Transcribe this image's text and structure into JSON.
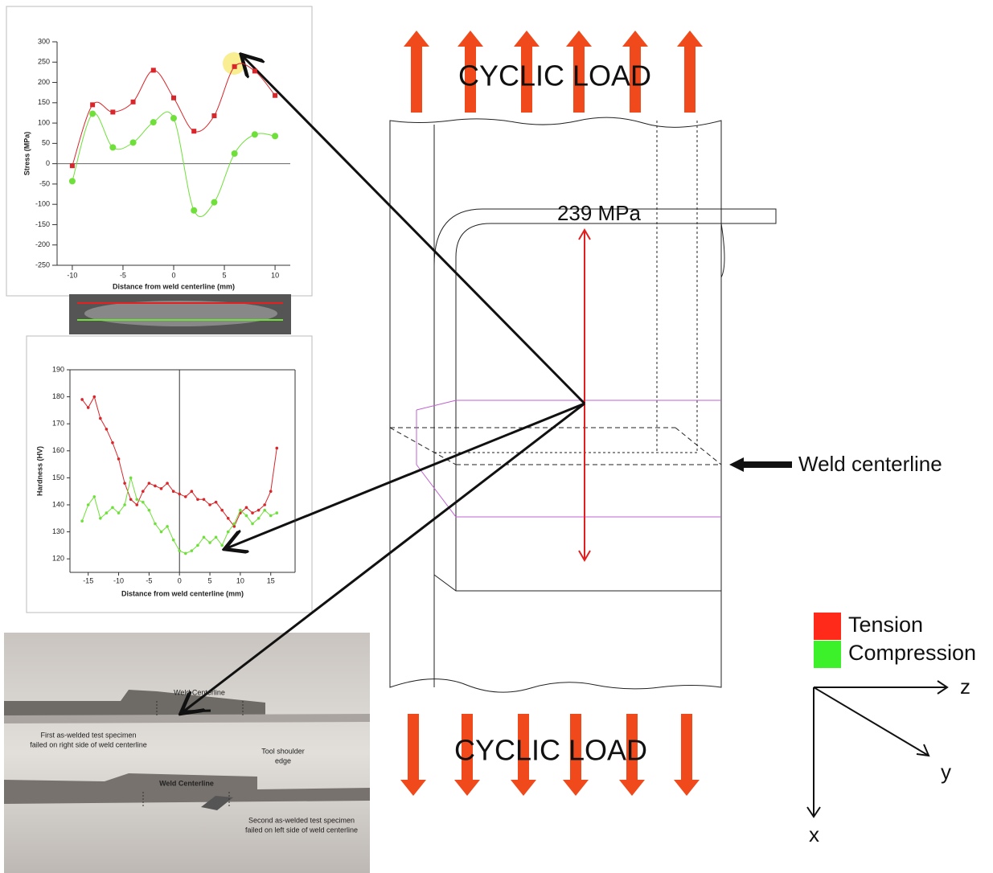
{
  "chart_data": [
    {
      "type": "line",
      "smooth": true,
      "xlabel": "Distance from weld centerline (mm)",
      "ylabel": "Stress (MPa)",
      "x": [
        -10,
        -8,
        -6,
        -4,
        -2,
        0,
        2,
        4,
        6,
        8,
        10
      ],
      "series": [
        {
          "color": "#d8262a",
          "values": [
            -5,
            145,
            127,
            152,
            230,
            162,
            80,
            118,
            239,
            228,
            168
          ]
        },
        {
          "color": "#6fe03a",
          "values": [
            -43,
            123,
            40,
            52,
            102,
            112,
            -115,
            -95,
            25,
            72,
            68
          ]
        }
      ],
      "xlim": [
        -11.5,
        11.5
      ],
      "xticks": [
        -10,
        -5,
        0,
        5,
        10
      ],
      "ylim": [
        -250,
        300
      ],
      "yticks": [
        -250,
        -200,
        -150,
        -100,
        -50,
        0,
        50,
        100,
        150,
        200,
        250,
        300
      ]
    },
    {
      "type": "line",
      "smooth": false,
      "xlabel": "Distance from weld centerline (mm)",
      "ylabel": "Hardness (HV)",
      "x": [
        -16,
        -15,
        -14,
        -13,
        -12,
        -11,
        -10,
        -9,
        -8,
        -7,
        -6,
        -5,
        -4,
        -3,
        -2,
        -1,
        0,
        1,
        2,
        3,
        4,
        5,
        6,
        7,
        8,
        9,
        10,
        11,
        12,
        13,
        14,
        15,
        16
      ],
      "series": [
        {
          "color": "#d8262a",
          "values": [
            179,
            176,
            180,
            172,
            168,
            163,
            157,
            148,
            142,
            140,
            145,
            148,
            147,
            146,
            148,
            145,
            144,
            143,
            145,
            142,
            142,
            140,
            141,
            138,
            135,
            132,
            137,
            139,
            137,
            138,
            140,
            145,
            161
          ]
        },
        {
          "color": "#6fe03a",
          "values": [
            134,
            140,
            143,
            135,
            137,
            139,
            137,
            140,
            150,
            142,
            141,
            138,
            133,
            130,
            132,
            127,
            123,
            122,
            123,
            125,
            128,
            126,
            128,
            125,
            130,
            133,
            138,
            136,
            133,
            135,
            138,
            136,
            137
          ]
        }
      ],
      "xlim": [
        -18,
        19
      ],
      "xticks": [
        -15,
        -10,
        -5,
        0,
        5,
        10,
        15
      ],
      "ylim": [
        115,
        190
      ],
      "yticks": [
        120,
        130,
        140,
        150,
        160,
        170,
        180,
        190
      ]
    }
  ],
  "diagram": {
    "load_top": "CYCLIC LOAD",
    "load_bottom": "CYCLIC LOAD",
    "stress_label": "239 MPa",
    "weld_label": "Weld centerline",
    "legend": [
      {
        "label": "Tension",
        "color": "#ff2a1a"
      },
      {
        "label": "Compression",
        "color": "#3cf02a"
      }
    ],
    "axes": {
      "z": "z",
      "y": "y",
      "x": "x"
    }
  },
  "photo": {
    "labels": [
      "Weld Centerline",
      "First as-welded test specimen",
      "failed on right side of weld centerline",
      "Tool shoulder",
      "edge",
      "Weld Centerline",
      "Second as-welded test specimen",
      "failed on left side of weld centerline"
    ]
  }
}
